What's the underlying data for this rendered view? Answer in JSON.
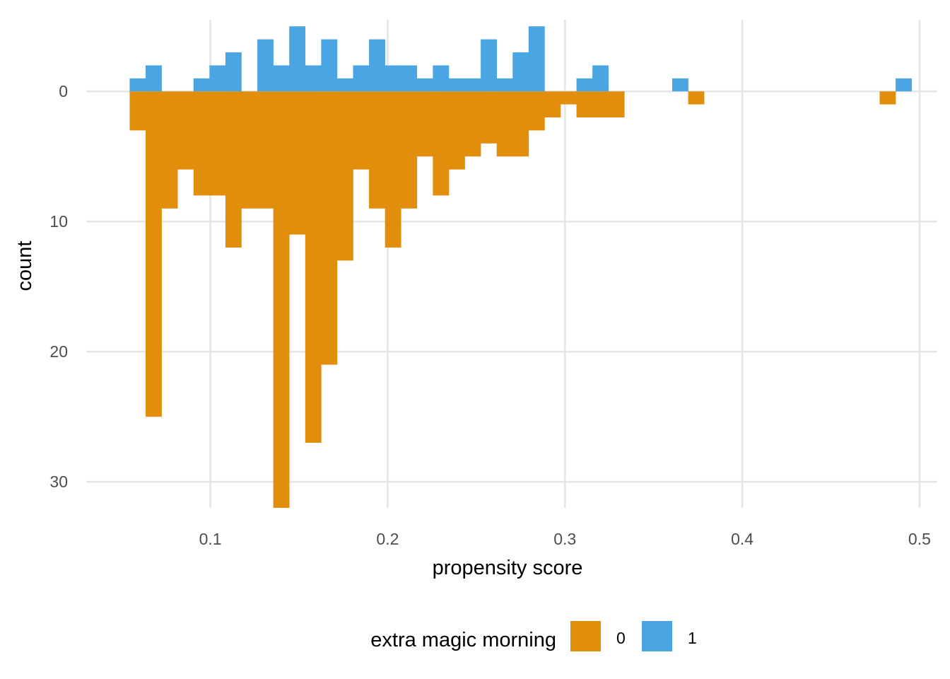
{
  "chart_data": {
    "type": "bar",
    "subtype": "mirrored-histogram",
    "xlabel": "propensity score",
    "ylabel": "count",
    "xlim": [
      0.03,
      0.51
    ],
    "ylim": [
      -5.5,
      32
    ],
    "y_reversed": true,
    "x_ticks": [
      0.1,
      0.2,
      0.3,
      0.4,
      0.5
    ],
    "x_tick_labels": [
      "0.1",
      "0.2",
      "0.3",
      "0.4",
      "0.5"
    ],
    "y_ticks": [
      0,
      10,
      20,
      30
    ],
    "y_tick_labels": [
      "0",
      "10",
      "20",
      "30"
    ],
    "grid": true,
    "bin_starts": [
      0.0545,
      0.0635,
      0.0725,
      0.0815,
      0.0905,
      0.0995,
      0.1085,
      0.1175,
      0.1265,
      0.1355,
      0.1445,
      0.1535,
      0.1625,
      0.1715,
      0.1805,
      0.1895,
      0.1985,
      0.2075,
      0.2165,
      0.2255,
      0.2345,
      0.2435,
      0.2525,
      0.2615,
      0.2705,
      0.2795,
      0.2885,
      0.2975,
      0.3065,
      0.3155,
      0.3245,
      0.3335,
      0.3425,
      0.3515,
      0.3605,
      0.3695,
      0.3785,
      0.3875,
      0.3965,
      0.4055,
      0.4145,
      0.4235,
      0.4325,
      0.4415,
      0.4505,
      0.4595,
      0.4685,
      0.4775,
      0.4865
    ],
    "bin_width": 0.009,
    "series": [
      {
        "name": "0",
        "color": "#E08E0B",
        "direction": "down",
        "values": [
          3,
          25,
          9,
          6,
          8,
          8,
          12,
          9,
          9,
          32,
          11,
          27,
          21,
          13,
          6,
          9,
          12,
          9,
          5,
          8,
          6,
          5,
          4,
          5,
          5,
          3,
          2,
          1,
          2,
          2,
          2,
          0,
          0,
          0,
          0,
          1,
          0,
          0,
          0,
          0,
          0,
          0,
          0,
          0,
          0,
          0,
          0,
          1,
          0
        ]
      },
      {
        "name": "1",
        "color": "#4AA5E3",
        "direction": "up",
        "values": [
          1,
          2,
          0,
          0,
          1,
          2,
          3,
          0,
          4,
          2,
          5,
          2,
          4,
          1,
          2,
          4,
          2,
          2,
          1,
          2,
          1,
          1,
          4,
          1,
          3,
          5,
          0,
          0,
          1,
          2,
          0,
          0,
          0,
          0,
          1,
          0,
          0,
          0,
          0,
          0,
          0,
          0,
          0,
          0,
          0,
          0,
          0,
          0,
          1
        ]
      }
    ],
    "legend": {
      "title": "extra magic morning",
      "position": "bottom",
      "items": [
        "0",
        "1"
      ]
    }
  }
}
